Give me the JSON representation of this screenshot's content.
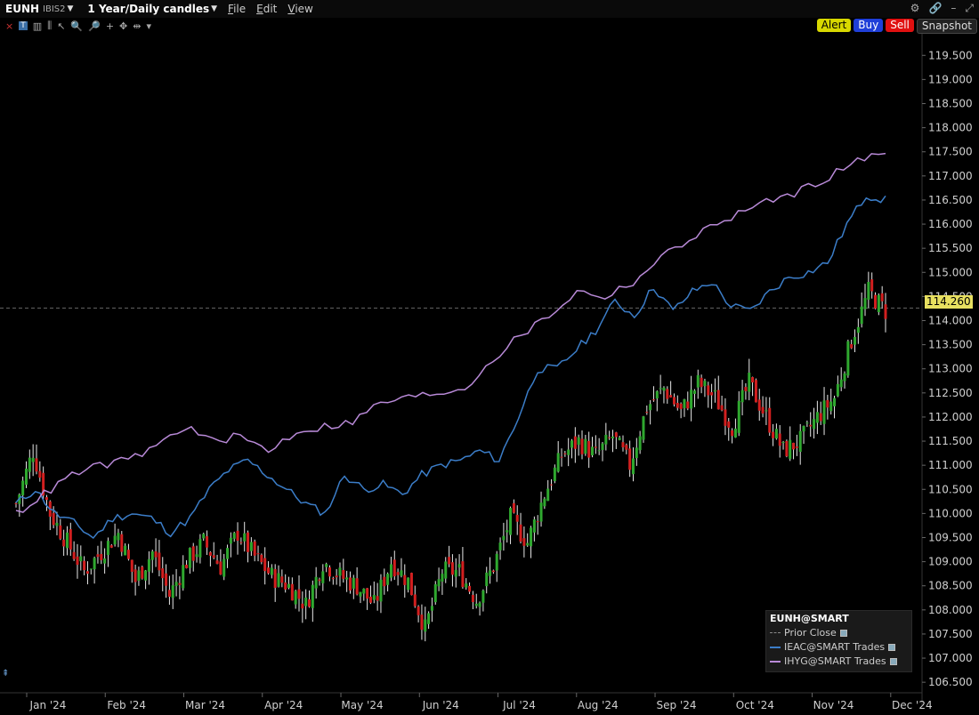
{
  "header": {
    "symbol": "EUNH",
    "exchange": "IBIS2",
    "period": "1 Year/Daily candles",
    "menus": [
      "File",
      "Edit",
      "View"
    ]
  },
  "actions": {
    "alert": "Alert",
    "buy": "Buy",
    "sell": "Sell",
    "snapshot": "Snapshot"
  },
  "colors": {
    "up": "#2fa82f",
    "down": "#d21f1f",
    "ieac": "#3b7dc8",
    "ihyg": "#b98ad8",
    "prior_close": "#666666",
    "axis_text": "#cfcfcf"
  },
  "price_tag": "114.260",
  "legend": {
    "title": "EUNH@SMART",
    "items": [
      {
        "label": "Prior Close",
        "style": "dashed",
        "color": "#888888"
      },
      {
        "label": "IEAC@SMART Trades",
        "style": "solid",
        "color": "#3b7dc8"
      },
      {
        "label": "IHYG@SMART Trades",
        "style": "solid",
        "color": "#b98ad8"
      }
    ]
  },
  "chart_data": {
    "type": "line",
    "ylim": [
      106.3,
      119.8
    ],
    "yticks": [
      "106.500",
      "107.000",
      "107.500",
      "108.000",
      "108.500",
      "109.000",
      "109.500",
      "110.000",
      "110.500",
      "111.000",
      "111.500",
      "112.000",
      "112.500",
      "113.000",
      "113.500",
      "114.000",
      "114.500",
      "115.000",
      "115.500",
      "116.000",
      "116.500",
      "117.000",
      "117.500",
      "118.000",
      "118.500",
      "119.000",
      "119.500"
    ],
    "xticks": [
      "Jan '24",
      "Feb '24",
      "Mar '24",
      "Apr '24",
      "May '24",
      "Jun '24",
      "Jul '24",
      "Aug '24",
      "Sep '24",
      "Oct '24",
      "Nov '24",
      "Dec '24"
    ],
    "prior_close": 114.26,
    "candles_close_weekly": [
      110.2,
      111.3,
      110.0,
      109.4,
      108.8,
      109.2,
      109.6,
      108.6,
      109.2,
      108.3,
      109.0,
      109.4,
      108.9,
      109.6,
      109.1,
      108.7,
      108.5,
      108.1,
      109.0,
      108.7,
      108.5,
      108.1,
      109.0,
      108.6,
      107.6,
      108.8,
      108.8,
      108.2,
      108.9,
      109.9,
      109.4,
      110.4,
      111.2,
      111.5,
      111.2,
      111.6,
      111.0,
      112.2,
      112.6,
      112.1,
      112.7,
      112.4,
      111.8,
      112.7,
      112.0,
      111.3,
      111.5,
      112.0,
      112.4,
      113.6,
      114.6,
      114.2
    ],
    "series": [
      {
        "name": "IEAC@SMART Trades",
        "values": [
          110.2,
          110.5,
          110.0,
          109.8,
          109.5,
          109.9,
          110.0,
          109.9,
          109.6,
          109.9,
          110.5,
          110.9,
          111.1,
          110.8,
          110.5,
          110.2,
          110.0,
          110.8,
          110.5,
          110.6,
          110.4,
          110.8,
          111.0,
          111.1,
          111.3,
          111.1,
          112.0,
          113.0,
          113.0,
          113.4,
          113.8,
          114.4,
          114.1,
          114.7,
          114.2,
          114.6,
          114.8,
          114.3,
          114.2,
          114.6,
          114.9,
          115.0,
          115.2,
          116.0,
          116.6,
          116.5
        ]
      },
      {
        "name": "IHYG@SMART Trades",
        "values": [
          110.0,
          110.4,
          110.8,
          111.0,
          111.1,
          111.4,
          111.8,
          111.5,
          111.6,
          111.3,
          111.7,
          111.8,
          111.9,
          112.3,
          112.4,
          112.5,
          112.6,
          113.2,
          113.7,
          114.1,
          114.6,
          114.5,
          114.8,
          115.3,
          115.7,
          116.0,
          116.3,
          116.5,
          116.7,
          117.0,
          117.3,
          117.5
        ]
      }
    ]
  }
}
